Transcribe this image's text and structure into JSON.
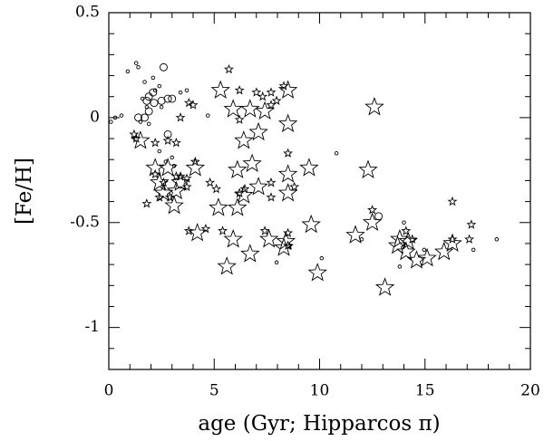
{
  "chart_data": {
    "type": "scatter",
    "xlabel": "age (Gyr; Hipparcos π)",
    "ylabel": "[Fe/H]",
    "xlim": [
      0,
      20
    ],
    "ylim": [
      -1.2,
      0.5
    ],
    "xticks": [
      0,
      5,
      10,
      15,
      20
    ],
    "yticks": [
      0.5,
      0,
      -0.5,
      -1
    ],
    "xminorticks": [
      1,
      2,
      3,
      4,
      6,
      7,
      8,
      9,
      11,
      12,
      13,
      14,
      16,
      17,
      18,
      19
    ],
    "yminorticks": [
      0.4,
      0.3,
      0.2,
      0.1,
      -0.1,
      -0.2,
      -0.3,
      -0.4,
      -0.6,
      -0.7,
      -0.8,
      -0.9,
      -1.1
    ],
    "color": "#000000",
    "series": [
      {
        "marker": "star",
        "size": "large",
        "x": [
          5.3,
          5.9,
          6.7,
          6.4,
          7.1,
          7.4,
          8.5,
          8.5,
          6.8,
          6.1,
          4.1,
          3.2,
          2.6,
          3.1,
          5.2,
          4.2,
          6.1,
          6.4,
          7.1,
          8.5,
          8.5,
          9.5,
          9.6,
          7.6,
          5.9,
          5.6,
          6.7,
          8.4,
          8.3,
          9.9,
          11.7,
          12.3,
          12.6,
          12.5,
          13.1,
          13.7,
          14.2,
          14.1,
          14.6,
          15.1,
          15.9,
          16.3,
          1.5,
          2.8,
          2.2,
          2.4,
          3.4,
          13.8
        ],
        "values": [
          0.13,
          0.04,
          0.04,
          -0.11,
          -0.07,
          0.03,
          0.13,
          -0.03,
          -0.22,
          -0.25,
          -0.24,
          -0.35,
          -0.36,
          -0.42,
          -0.43,
          -0.55,
          -0.43,
          -0.37,
          -0.33,
          -0.27,
          -0.36,
          -0.24,
          -0.51,
          -0.58,
          -0.58,
          -0.71,
          -0.65,
          -0.59,
          -0.62,
          -0.74,
          -0.56,
          -0.25,
          0.05,
          -0.5,
          -0.81,
          -0.61,
          -0.59,
          -0.64,
          -0.68,
          -0.67,
          -0.64,
          -0.6,
          -0.11,
          -0.24,
          -0.24,
          -0.31,
          -0.31,
          -0.58
        ]
      },
      {
        "marker": "star",
        "size": "small",
        "x": [
          5.7,
          6.2,
          7.0,
          7.3,
          7.7,
          7.96,
          8.3,
          7.7,
          6.2,
          1.2,
          1.3,
          1.8,
          2.2,
          2.8,
          3.2,
          4.1,
          3.4,
          3.8,
          4.0,
          3.2,
          3.4,
          3.7,
          3.7,
          2.6,
          2.9,
          2.2,
          2.4,
          3.8,
          4.8,
          5.1,
          4.6,
          5.4,
          6.2,
          6.45,
          7.7,
          7.7,
          8.5,
          8.8,
          7.4,
          8.5,
          8.5,
          16.3,
          17.2,
          17.1,
          16.3,
          12.5,
          14.1,
          14.4
        ],
        "values": [
          0.23,
          0.13,
          0.12,
          0.1,
          0.12,
          0.08,
          0.15,
          0.06,
          -0.01,
          -0.08,
          -0.1,
          -0.41,
          -0.12,
          -0.11,
          -0.12,
          -0.21,
          0.0,
          0.07,
          0.06,
          -0.28,
          -0.28,
          -0.29,
          -0.33,
          -0.31,
          -0.38,
          -0.27,
          -0.38,
          -0.54,
          -0.31,
          -0.34,
          -0.53,
          -0.54,
          -0.36,
          -0.34,
          -0.31,
          -0.38,
          -0.17,
          -0.33,
          -0.54,
          -0.55,
          -0.61,
          -0.4,
          -0.51,
          -0.58,
          -0.58,
          -0.44,
          -0.54,
          -0.58
        ]
      },
      {
        "marker": "circle",
        "size": "small",
        "x": [
          0.3,
          0.9,
          1.3,
          1.4,
          0.6,
          0.1,
          1.7,
          2.1,
          2.2,
          2.4,
          1.6,
          1.8,
          1.5,
          1.9,
          2.5,
          3.4,
          3.7,
          4.7,
          10.8,
          10.1,
          7.96,
          13.8,
          12.0,
          18.4,
          14.96,
          17.3,
          3.0,
          2.4,
          2.7,
          3.1,
          14.0
        ],
        "values": [
          0.0,
          0.22,
          0.26,
          0.24,
          0.01,
          -0.02,
          0.17,
          0.19,
          0.13,
          0.15,
          0.09,
          0.05,
          -0.02,
          -0.03,
          0.05,
          0.12,
          0.13,
          0.01,
          -0.17,
          -0.67,
          -0.69,
          -0.71,
          -0.58,
          -0.58,
          -0.63,
          -0.63,
          -0.19,
          -0.16,
          -0.21,
          -0.23,
          -0.5
        ]
      },
      {
        "marker": "circle",
        "size": "large",
        "x": [
          2.6,
          2.1,
          1.8,
          1.9,
          2.5,
          2.8,
          3.0,
          2.15,
          1.4,
          1.7,
          1.9,
          12.8,
          2.8
        ],
        "values": [
          0.24,
          0.12,
          0.08,
          0.1,
          0.08,
          0.09,
          0.09,
          0.07,
          0.0,
          0.0,
          0.03,
          -0.47,
          -0.08
        ]
      }
    ]
  }
}
